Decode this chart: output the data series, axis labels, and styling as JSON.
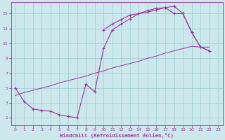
{
  "bg_color": "#cce8ec",
  "line_color": "#993399",
  "xlabel": "Windchill (Refroidissement éolien,°C)",
  "xlabel_color": "#993399",
  "tick_color": "#993399",
  "grid_color": "#99cccc",
  "xlim": [
    -0.5,
    23.5
  ],
  "ylim": [
    0,
    16.5
  ],
  "xticks": [
    0,
    1,
    2,
    3,
    4,
    5,
    6,
    7,
    8,
    9,
    10,
    11,
    12,
    13,
    14,
    15,
    16,
    17,
    18,
    19,
    20,
    21,
    22,
    23
  ],
  "yticks": [
    1,
    3,
    5,
    7,
    9,
    11,
    13,
    15
  ],
  "curve_upper_x": [
    10,
    11,
    12,
    13,
    14,
    15,
    16,
    17,
    18,
    19,
    20,
    21,
    22
  ],
  "curve_upper_y": [
    12.8,
    13.6,
    14.2,
    14.8,
    15.0,
    15.4,
    15.7,
    15.8,
    15.0,
    15.0,
    12.5,
    10.5,
    10.0
  ],
  "curve_mid_x": [
    0,
    1,
    2,
    3,
    4,
    5,
    6,
    7,
    8,
    9,
    10,
    11,
    12,
    13,
    14,
    15,
    16,
    17,
    18,
    19,
    20,
    21,
    22
  ],
  "curve_mid_y": [
    4.0,
    4.4,
    4.7,
    5.0,
    5.3,
    5.7,
    6.0,
    6.3,
    6.6,
    7.0,
    7.3,
    7.7,
    8.0,
    8.3,
    8.6,
    9.0,
    9.3,
    9.7,
    10.0,
    10.3,
    10.6,
    10.5,
    10.5
  ],
  "curve_lower_x": [
    0,
    1,
    2,
    3,
    4,
    5,
    6,
    7,
    8,
    9,
    10,
    11,
    12,
    13,
    14,
    15,
    16,
    17,
    18,
    19,
    20,
    21,
    22
  ],
  "curve_lower_y": [
    5.0,
    3.2,
    2.2,
    2.0,
    1.9,
    1.4,
    1.2,
    1.0,
    5.5,
    4.5,
    10.3,
    12.8,
    13.6,
    14.3,
    15.0,
    15.2,
    15.5,
    15.8,
    16.0,
    15.0,
    12.5,
    10.5,
    10.0
  ]
}
